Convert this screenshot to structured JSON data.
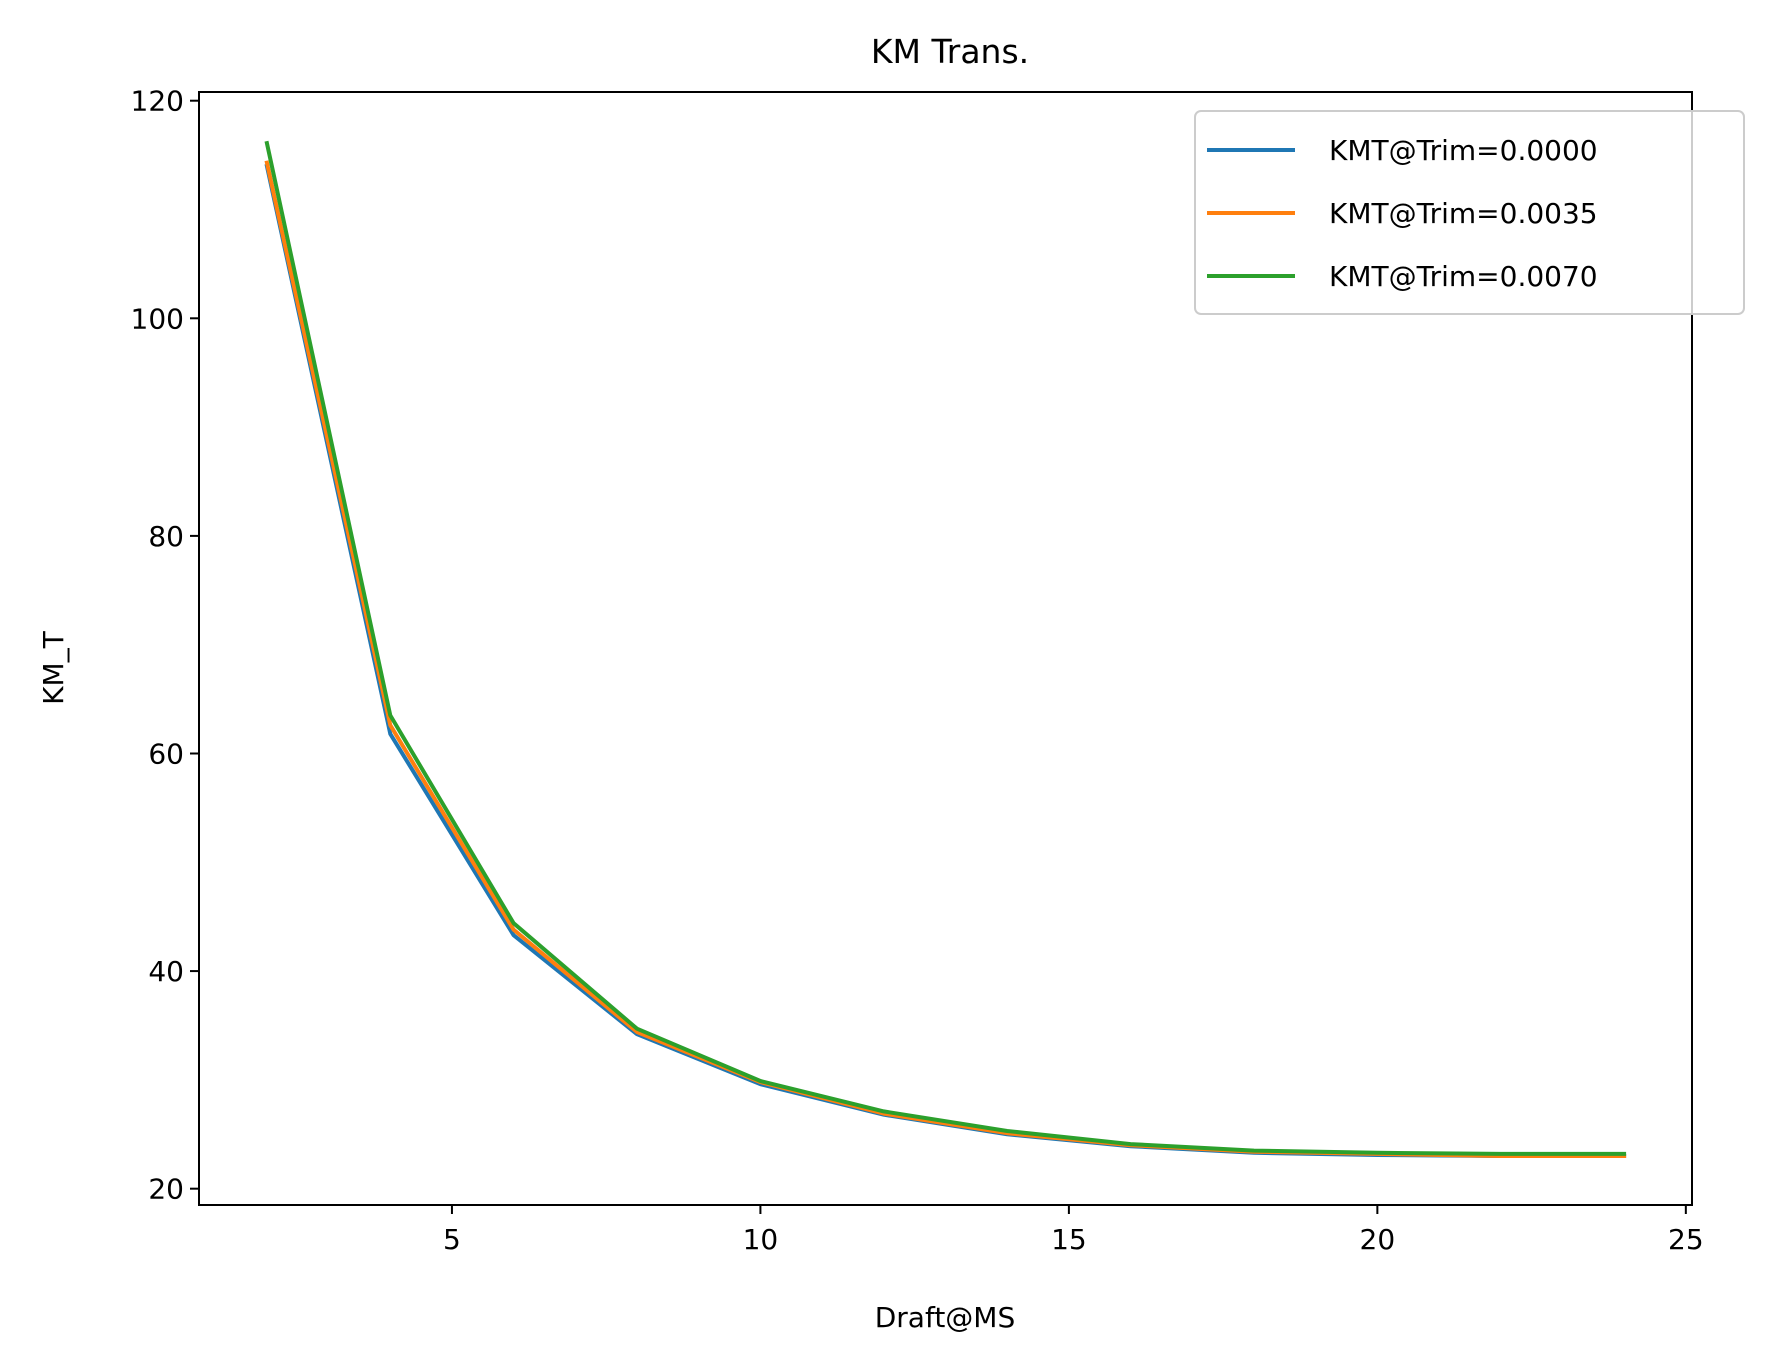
{
  "chart_data": {
    "type": "line",
    "title": "KM Trans.",
    "xlabel": "Draft@MS",
    "ylabel": "KM_T",
    "xlim": [
      0.9,
      25.1
    ],
    "ylim": [
      18.5,
      120.8
    ],
    "xticks": [
      5,
      10,
      15,
      20,
      25
    ],
    "yticks": [
      20,
      40,
      60,
      80,
      100,
      120
    ],
    "grid": false,
    "legend_position": "upper-right",
    "x": [
      2,
      4,
      6,
      8,
      10,
      12,
      14,
      16,
      18,
      20,
      22,
      24
    ],
    "series": [
      {
        "name": "KMT@Trim=0.0000",
        "color": "#1f77b4",
        "values": [
          114.0,
          61.8,
          43.3,
          34.2,
          29.6,
          26.8,
          25.0,
          23.9,
          23.3,
          23.1,
          23.0,
          23.0
        ]
      },
      {
        "name": "KMT@Trim=0.0035",
        "color": "#ff7f0e",
        "values": [
          114.3,
          62.6,
          43.8,
          34.4,
          29.8,
          26.9,
          25.1,
          24.0,
          23.4,
          23.2,
          23.0,
          23.0
        ]
      },
      {
        "name": "KMT@Trim=0.0070",
        "color": "#2ca02c",
        "values": [
          116.1,
          63.5,
          44.4,
          34.7,
          29.9,
          27.1,
          25.3,
          24.1,
          23.5,
          23.3,
          23.2,
          23.2
        ]
      }
    ]
  }
}
